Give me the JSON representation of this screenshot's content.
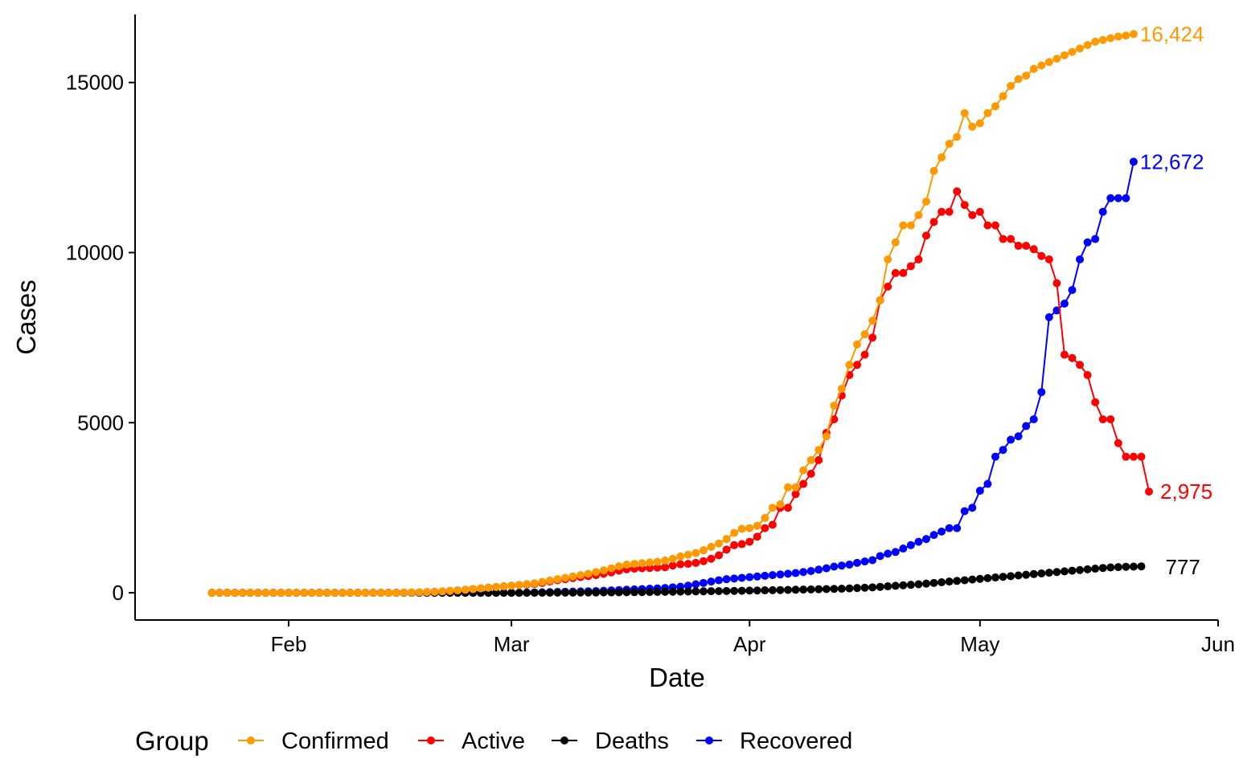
{
  "chart_data": {
    "type": "line",
    "xlabel": "Date",
    "ylabel": "Cases",
    "x_start": "2020-01-22",
    "x_end": "2020-05-21",
    "xlim": [
      "2020-01-12",
      "2020-06-01"
    ],
    "ylim": [
      -800,
      17000
    ],
    "x_ticks": [
      {
        "label": "Feb",
        "date": "2020-02-01"
      },
      {
        "label": "Mar",
        "date": "2020-03-01"
      },
      {
        "label": "Apr",
        "date": "2020-04-01"
      },
      {
        "label": "May",
        "date": "2020-05-01"
      },
      {
        "label": "Jun",
        "date": "2020-06-01"
      }
    ],
    "y_ticks": [
      0,
      5000,
      10000,
      15000
    ],
    "legend": {
      "title": "Group",
      "position": "bottom"
    },
    "series": [
      {
        "name": "Confirmed",
        "color": "#FF9900",
        "end_label": "16,424",
        "values": [
          0,
          0,
          0,
          0,
          0,
          0,
          0,
          0,
          0,
          0,
          0,
          0,
          0,
          0,
          0,
          0,
          0,
          0,
          0,
          0,
          0,
          0,
          0,
          0,
          0,
          5,
          10,
          15,
          20,
          30,
          40,
          55,
          70,
          90,
          110,
          130,
          150,
          170,
          190,
          210,
          230,
          255,
          280,
          320,
          360,
          400,
          440,
          480,
          520,
          560,
          610,
          660,
          720,
          780,
          830,
          850,
          870,
          890,
          910,
          950,
          1000,
          1070,
          1120,
          1170,
          1250,
          1350,
          1450,
          1580,
          1760,
          1880,
          1900,
          1970,
          2200,
          2500,
          2600,
          3100,
          3100,
          3600,
          3900,
          4200,
          4600,
          5500,
          6000,
          6700,
          7300,
          7600,
          8000,
          8600,
          9800,
          10300,
          10800,
          10800,
          11100,
          11500,
          12400,
          12800,
          13200,
          13400,
          14100,
          13700,
          13800,
          14100,
          14300,
          14600,
          14900,
          15100,
          15200,
          15400,
          15500,
          15600,
          15700,
          15800,
          15900,
          16000,
          16100,
          16200,
          16250,
          16300,
          16350,
          16380,
          16424
        ]
      },
      {
        "name": "Active",
        "color": "#FF0000",
        "end_label": "2,975",
        "values": [
          0,
          0,
          0,
          0,
          0,
          0,
          0,
          0,
          0,
          0,
          0,
          0,
          0,
          0,
          0,
          0,
          0,
          0,
          0,
          0,
          0,
          0,
          0,
          0,
          0,
          5,
          10,
          15,
          20,
          30,
          40,
          55,
          70,
          90,
          110,
          130,
          150,
          170,
          190,
          210,
          230,
          240,
          260,
          290,
          330,
          370,
          400,
          430,
          460,
          490,
          520,
          560,
          600,
          650,
          690,
          710,
          720,
          730,
          740,
          750,
          800,
          840,
          850,
          880,
          930,
          1000,
          1100,
          1270,
          1400,
          1430,
          1500,
          1650,
          1900,
          2000,
          2500,
          2500,
          2900,
          3200,
          3500,
          3900,
          4700,
          5100,
          5800,
          6400,
          6700,
          7000,
          7500,
          8600,
          9000,
          9400,
          9400,
          9600,
          9800,
          10500,
          10900,
          11200,
          11200,
          11800,
          11400,
          11100,
          11200,
          10800,
          10800,
          10400,
          10400,
          10200,
          10200,
          10100,
          9900,
          9800,
          9100,
          7000,
          6900,
          6700,
          6400,
          5600,
          5100,
          5100,
          4400,
          4000,
          4000,
          4000,
          2975
        ]
      },
      {
        "name": "Deaths",
        "color": "#000000",
        "end_label": "777",
        "values": [
          0,
          0,
          0,
          0,
          0,
          0,
          0,
          0,
          0,
          0,
          0,
          0,
          0,
          0,
          0,
          0,
          0,
          0,
          0,
          0,
          0,
          0,
          0,
          0,
          0,
          0,
          0,
          0,
          0,
          0,
          0,
          0,
          0,
          0,
          0,
          0,
          0,
          0,
          0,
          0,
          0,
          0,
          2,
          3,
          4,
          5,
          6,
          7,
          8,
          9,
          10,
          11,
          13,
          15,
          17,
          19,
          21,
          23,
          26,
          29,
          32,
          35,
          38,
          41,
          44,
          47,
          50,
          53,
          56,
          60,
          64,
          68,
          72,
          76,
          80,
          85,
          90,
          95,
          100,
          105,
          110,
          115,
          120,
          130,
          140,
          150,
          160,
          175,
          190,
          205,
          220,
          235,
          250,
          270,
          290,
          310,
          330,
          350,
          370,
          390,
          410,
          430,
          450,
          470,
          490,
          510,
          530,
          550,
          570,
          590,
          610,
          630,
          650,
          670,
          690,
          710,
          730,
          745,
          755,
          765,
          770,
          777
        ]
      },
      {
        "name": "Recovered",
        "color": "#0000FF",
        "end_label": "12,672",
        "values": [
          0,
          0,
          0,
          0,
          0,
          0,
          0,
          0,
          0,
          0,
          0,
          0,
          0,
          0,
          0,
          0,
          0,
          0,
          0,
          0,
          0,
          0,
          0,
          0,
          0,
          0,
          0,
          0,
          0,
          0,
          0,
          0,
          0,
          0,
          0,
          0,
          0,
          0,
          0,
          0,
          0,
          5,
          10,
          15,
          20,
          25,
          30,
          35,
          40,
          45,
          50,
          60,
          70,
          80,
          90,
          100,
          110,
          120,
          130,
          140,
          160,
          180,
          210,
          250,
          290,
          330,
          370,
          400,
          420,
          440,
          460,
          480,
          500,
          520,
          540,
          560,
          580,
          610,
          640,
          680,
          720,
          770,
          800,
          830,
          880,
          920,
          960,
          1080,
          1150,
          1200,
          1300,
          1400,
          1500,
          1580,
          1700,
          1800,
          1900,
          1900,
          2400,
          2500,
          3000,
          3200,
          4000,
          4200,
          4500,
          4600,
          4900,
          5100,
          5900,
          8100,
          8300,
          8500,
          8900,
          9800,
          10300,
          10400,
          11200,
          11600,
          11600,
          11600,
          12672
        ]
      }
    ]
  }
}
